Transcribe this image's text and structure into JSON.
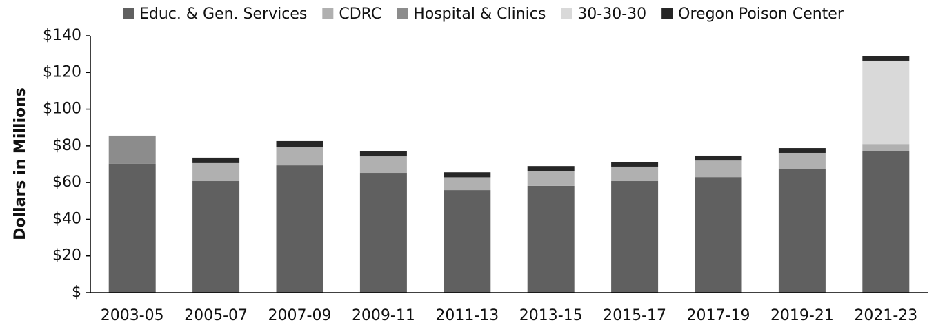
{
  "chart_data": {
    "type": "bar",
    "stacked": true,
    "y_label": "Dollars in Millions",
    "categories": [
      "2003-05",
      "2005-07",
      "2007-09",
      "2009-11",
      "2011-13",
      "2013-15",
      "2015-17",
      "2017-19",
      "2019-21",
      "2021-23"
    ],
    "series": [
      {
        "name": "Educ. & Gen. Services",
        "color": "#606060",
        "values": [
          70.2,
          60.8,
          69.4,
          65.3,
          55.9,
          58.2,
          60.8,
          63,
          67.2,
          77
        ]
      },
      {
        "name": "CDRC",
        "color": "#b0b0b0",
        "values": [
          0,
          9.8,
          9.8,
          9,
          7,
          8.2,
          7.9,
          9,
          9,
          4
        ]
      },
      {
        "name": "Hospital & Clinics",
        "color": "#8c8c8c",
        "values": [
          15.4,
          0,
          0,
          0,
          0,
          0,
          0,
          0,
          0,
          0
        ]
      },
      {
        "name": "30-30-30",
        "color": "#d9d9d9",
        "values": [
          0,
          0,
          0,
          0,
          0,
          0,
          0,
          0,
          0,
          45.5
        ]
      },
      {
        "name": "Oregon Poison Center",
        "color": "#262626",
        "values": [
          0,
          3,
          3.4,
          2.7,
          2.7,
          2.6,
          2.6,
          2.7,
          2.6,
          2.3
        ]
      }
    ],
    "ylim": [
      0,
      140
    ],
    "yticks": [
      {
        "value": 0,
        "label": "$"
      },
      {
        "value": 20,
        "label": "$20"
      },
      {
        "value": 40,
        "label": "$40"
      },
      {
        "value": 60,
        "label": "$60"
      },
      {
        "value": 80,
        "label": "$80"
      },
      {
        "value": 100,
        "label": "$100"
      },
      {
        "value": 120,
        "label": "$120"
      },
      {
        "value": 140,
        "label": "$140"
      }
    ],
    "legend": "top"
  }
}
